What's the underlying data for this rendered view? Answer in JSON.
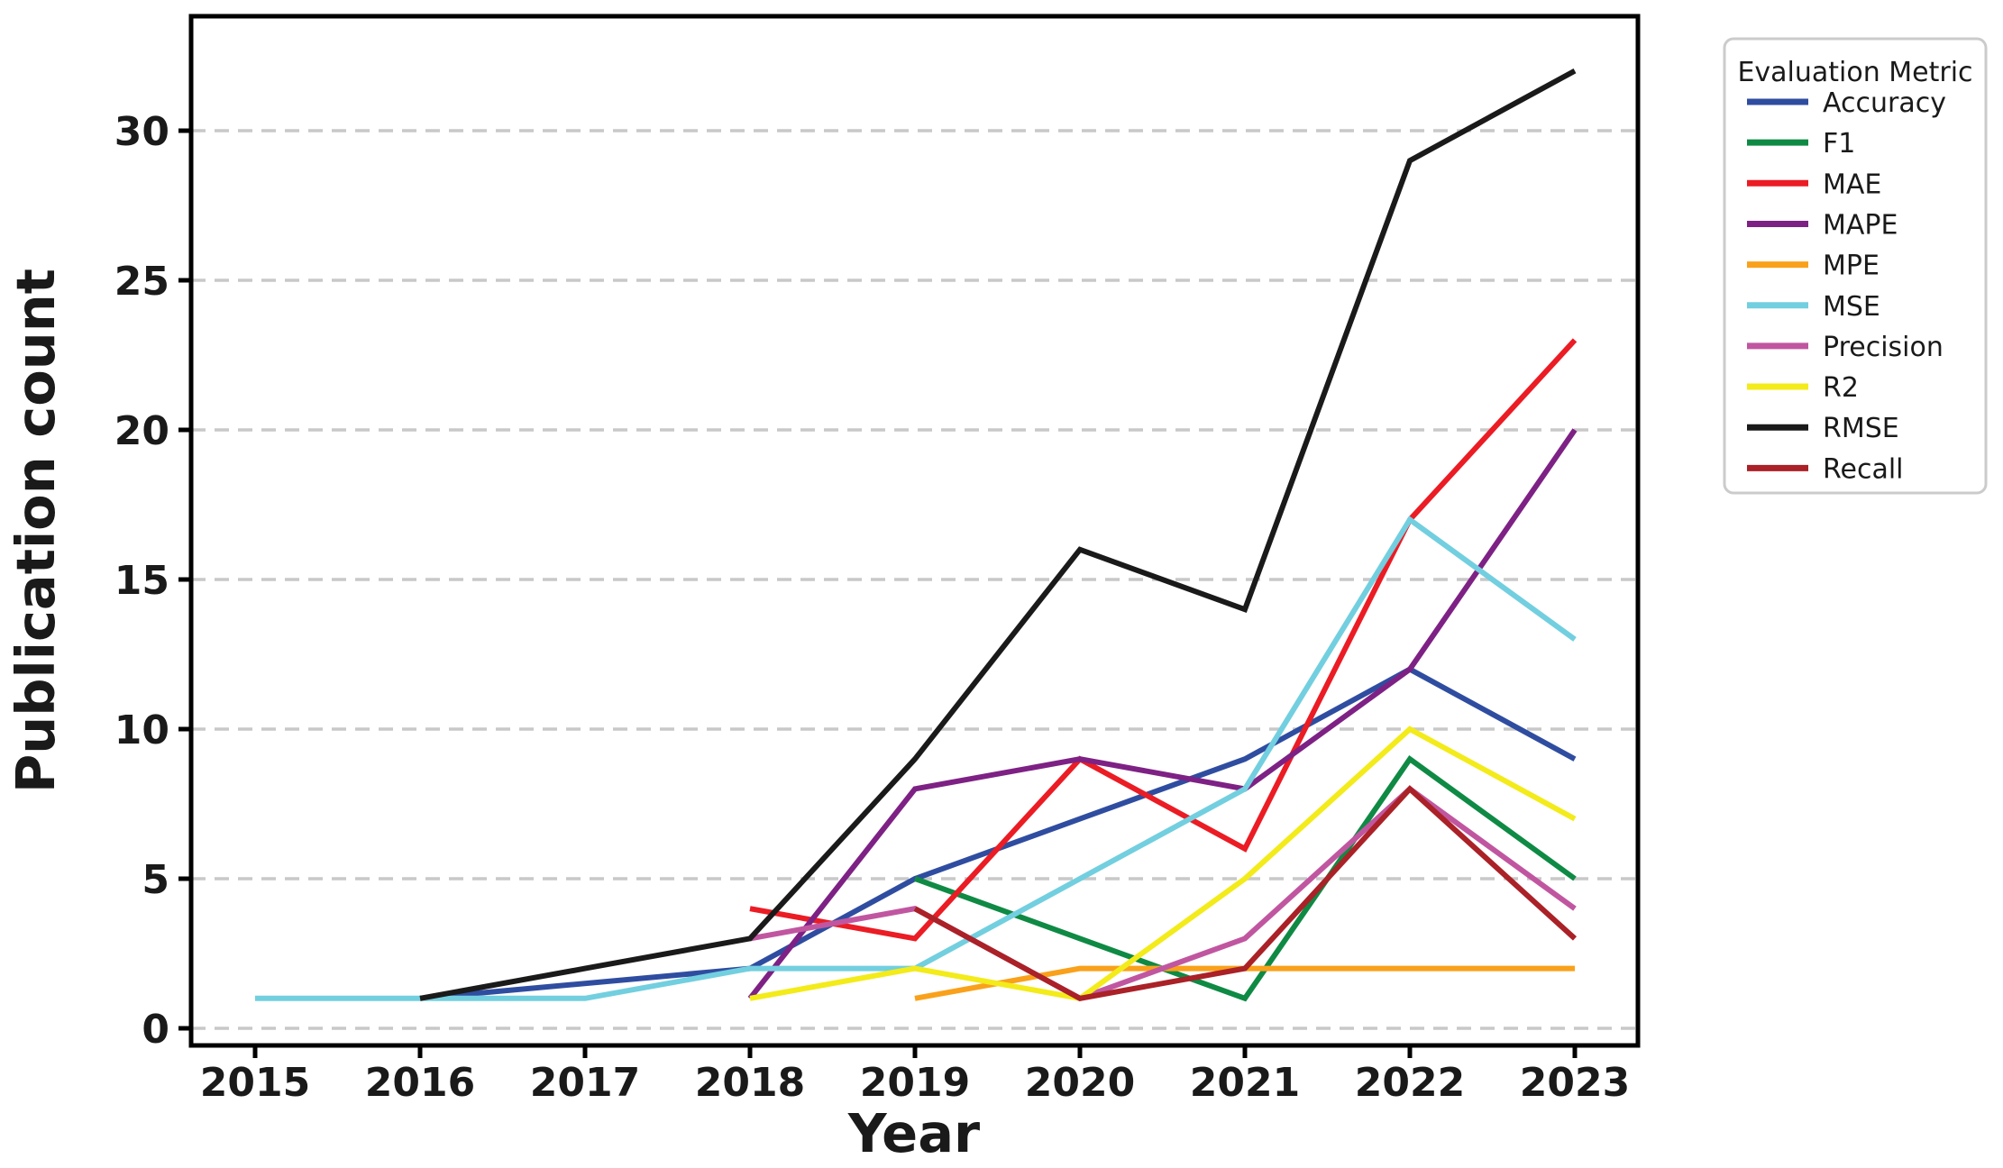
{
  "chart_data": {
    "type": "line",
    "title": "",
    "xlabel": "Year",
    "ylabel": "Publication count",
    "x_ticks": [
      2015,
      2016,
      2017,
      2018,
      2019,
      2020,
      2021,
      2022,
      2023
    ],
    "y_ticks": [
      0,
      5,
      10,
      15,
      20,
      25,
      30
    ],
    "xlim": [
      2014.6,
      2023.4
    ],
    "ylim": [
      0,
      33.8
    ],
    "grid": "horizontal-dashed",
    "grid_color": "#c8c8c8",
    "axis_color": "#000000",
    "legend": {
      "title": "Evaluation Metric",
      "position": "outside-right",
      "border_color": "#cbcbcb"
    },
    "series": [
      {
        "name": "Accuracy",
        "color": "#2f4da0",
        "points": [
          [
            2016,
            1
          ],
          [
            2018,
            2
          ],
          [
            2019,
            5
          ],
          [
            2020,
            7
          ],
          [
            2021,
            9
          ],
          [
            2022,
            12
          ],
          [
            2023,
            9
          ]
        ]
      },
      {
        "name": "F1",
        "color": "#0f8a44",
        "points": [
          [
            2019,
            5
          ],
          [
            2020,
            3
          ],
          [
            2021,
            1
          ],
          [
            2022,
            9
          ],
          [
            2023,
            5
          ]
        ]
      },
      {
        "name": "MAE",
        "color": "#eb1c24",
        "points": [
          [
            2018,
            4
          ],
          [
            2019,
            3
          ],
          [
            2020,
            9
          ],
          [
            2021,
            6
          ],
          [
            2022,
            17
          ],
          [
            2023,
            23
          ]
        ]
      },
      {
        "name": "MAPE",
        "color": "#7e2185",
        "points": [
          [
            2018,
            1
          ],
          [
            2019,
            8
          ],
          [
            2020,
            9
          ],
          [
            2021,
            8
          ],
          [
            2022,
            12
          ],
          [
            2023,
            20
          ]
        ]
      },
      {
        "name": "MPE",
        "color": "#f9a11b",
        "points": [
          [
            2019,
            1
          ],
          [
            2020,
            2
          ],
          [
            2021,
            2
          ],
          [
            2022,
            2
          ],
          [
            2023,
            2
          ]
        ]
      },
      {
        "name": "MSE",
        "color": "#72cfdf",
        "points": [
          [
            2015,
            1
          ],
          [
            2016,
            1
          ],
          [
            2017,
            1
          ],
          [
            2018,
            2
          ],
          [
            2019,
            2
          ],
          [
            2020,
            5
          ],
          [
            2021,
            8
          ],
          [
            2022,
            17
          ],
          [
            2023,
            13
          ]
        ]
      },
      {
        "name": "Precision",
        "color": "#c156a0",
        "points": [
          [
            2018,
            3
          ],
          [
            2019,
            4
          ],
          [
            2020,
            1
          ],
          [
            2021,
            3
          ],
          [
            2022,
            8
          ],
          [
            2023,
            4
          ]
        ]
      },
      {
        "name": "R2",
        "color": "#f3eb1a",
        "points": [
          [
            2018,
            1
          ],
          [
            2019,
            2
          ],
          [
            2020,
            1
          ],
          [
            2021,
            5
          ],
          [
            2022,
            10
          ],
          [
            2023,
            7
          ]
        ]
      },
      {
        "name": "RMSE",
        "color": "#1a1a1a",
        "points": [
          [
            2016,
            1
          ],
          [
            2017,
            2
          ],
          [
            2018,
            3
          ],
          [
            2019,
            9
          ],
          [
            2020,
            16
          ],
          [
            2021,
            14
          ],
          [
            2022,
            29
          ],
          [
            2023,
            32
          ]
        ]
      },
      {
        "name": "Recall",
        "color": "#aa2127",
        "points": [
          [
            2019,
            4
          ],
          [
            2020,
            1
          ],
          [
            2021,
            2
          ],
          [
            2022,
            8
          ],
          [
            2023,
            3
          ]
        ]
      }
    ]
  }
}
